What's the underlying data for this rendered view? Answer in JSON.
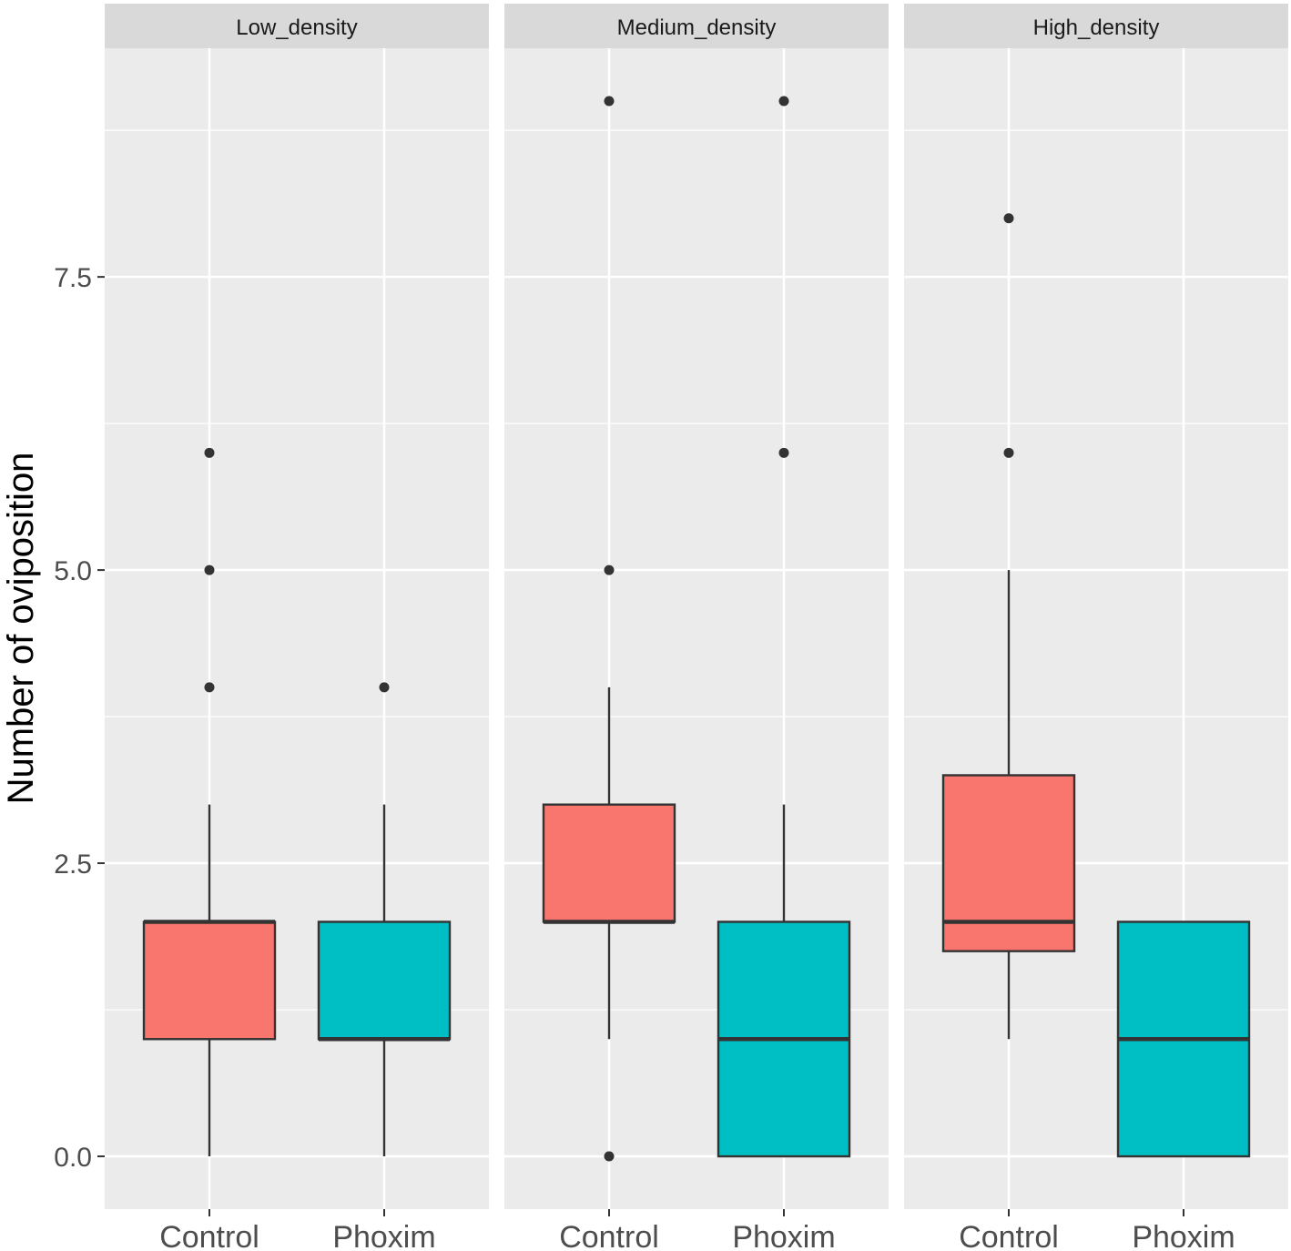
{
  "chart_data": {
    "type": "box",
    "ylabel": "Number of oviposition",
    "ylim": [
      -0.45,
      9.45
    ],
    "y_ticks": [
      {
        "value": 0,
        "label": "0.0"
      },
      {
        "value": 2.5,
        "label": "2.5"
      },
      {
        "value": 5,
        "label": "5.0"
      },
      {
        "value": 7.5,
        "label": "7.5"
      }
    ],
    "minor_gridlines": [
      1.25,
      3.75,
      6.25,
      8.75
    ],
    "categories": [
      "Control",
      "Phoxim"
    ],
    "colors": {
      "Control": "#F8766D",
      "Phoxim": "#00BFC4"
    },
    "grid": true,
    "panels": [
      {
        "name": "Low_density",
        "boxes": [
          {
            "category": "Control",
            "lower_whisker": 0,
            "q1": 1,
            "median": 2,
            "q3": 2,
            "upper_whisker": 3,
            "outliers": [
              4,
              5,
              6
            ]
          },
          {
            "category": "Phoxim",
            "lower_whisker": 0,
            "q1": 1,
            "median": 1,
            "q3": 2,
            "upper_whisker": 3,
            "outliers": [
              4
            ]
          }
        ]
      },
      {
        "name": "Medium_density",
        "boxes": [
          {
            "category": "Control",
            "lower_whisker": 1,
            "q1": 2,
            "median": 2,
            "q3": 3,
            "upper_whisker": 4,
            "outliers": [
              0,
              5,
              9
            ]
          },
          {
            "category": "Phoxim",
            "lower_whisker": 0,
            "q1": 0,
            "median": 1,
            "q3": 2,
            "upper_whisker": 3,
            "outliers": [
              6,
              9
            ]
          }
        ]
      },
      {
        "name": "High_density",
        "boxes": [
          {
            "category": "Control",
            "lower_whisker": 1,
            "q1": 1.75,
            "median": 2,
            "q3": 3.25,
            "upper_whisker": 5,
            "outliers": [
              6,
              8
            ]
          },
          {
            "category": "Phoxim",
            "lower_whisker": 0,
            "q1": 0,
            "median": 1,
            "q3": 2,
            "upper_whisker": 2,
            "outliers": []
          }
        ]
      }
    ]
  }
}
